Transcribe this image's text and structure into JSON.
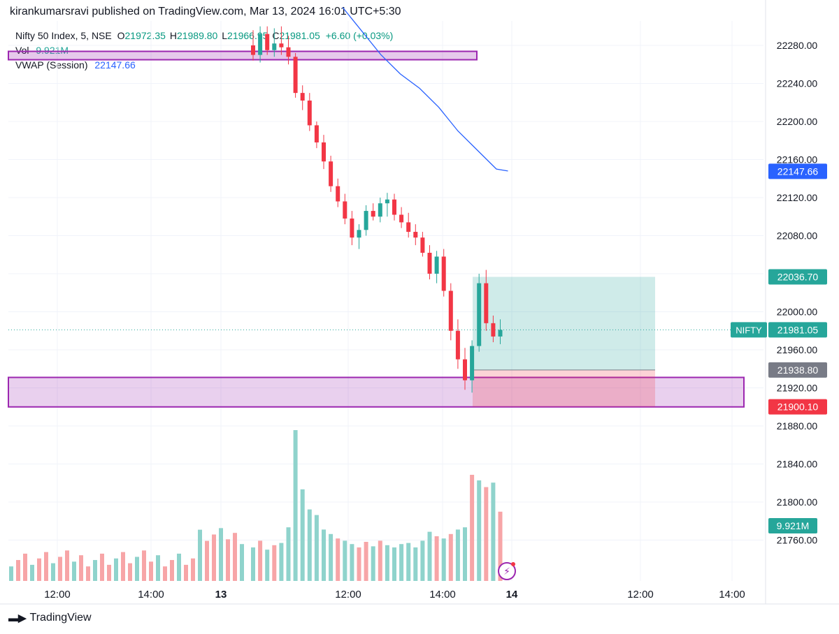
{
  "header": {
    "published": "kirankumarsravi published on TradingView.com, Mar 13, 2024 16:01 UTC+5:30"
  },
  "legend": {
    "symbol": "Nifty 50 Index, 5, NSE",
    "o_label": "O",
    "o_value": "21972.35",
    "h_label": "H",
    "h_value": "21989.80",
    "l_label": "L",
    "l_value": "21966.95",
    "c_label": "C",
    "c_value": "21981.05",
    "change": "+6.60 (+0.03%)",
    "vol_label": "Vol",
    "vol_value": "9.921M",
    "vwap_label": "VWAP (Session)",
    "vwap_value": "22147.66"
  },
  "footer": {
    "brand": "TradingView",
    "logo_icon": "tradingview-logo-icon"
  },
  "colors": {
    "up": "#26a69a",
    "down": "#f23645",
    "vwap": "#2962ff",
    "zone": "#9c27b0",
    "target": "#26a69a",
    "stop": "#f23645",
    "vol_up": "#8fd3cc",
    "vol_down": "#f7a5a7"
  },
  "chart_data": {
    "type": "candlestick",
    "ylim": [
      21740,
      22300
    ],
    "y_ticks": [
      "22280.00",
      "22240.00",
      "22200.00",
      "22160.00",
      "22120.00",
      "22080.00",
      "22040.00",
      "22000.00",
      "21960.00",
      "21920.00",
      "21880.00",
      "21840.00",
      "21800.00",
      "21760.00"
    ],
    "x_ticks": [
      "12:00",
      "14:00",
      "13",
      "12:00",
      "14:00",
      "14",
      "12:00",
      "14:00"
    ],
    "price_labels": {
      "vwap": "22147.66",
      "target": "22036.70",
      "last_symbol": "NIFTY",
      "last": "21981.05",
      "entry": "21938.80",
      "stop": "21900.10",
      "volume": "9.921M"
    },
    "last_price": 21981.05,
    "vwap": [
      [
        0,
        22320
      ],
      [
        5,
        22295
      ],
      [
        10,
        22270
      ],
      [
        15,
        22250
      ],
      [
        20,
        22235
      ],
      [
        25,
        22215
      ],
      [
        30,
        22190
      ],
      [
        35,
        22170
      ],
      [
        40,
        22150
      ],
      [
        43,
        22148
      ]
    ],
    "demand_zones": [
      {
        "from": 22273,
        "to": 22265
      },
      {
        "from": 21931,
        "to": 21900
      }
    ],
    "position": {
      "start": 40,
      "end": 56,
      "entry": 21938.8,
      "target": 22036.7,
      "stop": 21900.1
    },
    "series": [
      {
        "ohlc": [
          [
            22280,
            22296,
            22264,
            22270
          ],
          [
            22270,
            22300,
            22262,
            22292
          ],
          [
            22292,
            22300,
            22270,
            22275
          ],
          [
            22275,
            22298,
            22268,
            22282
          ],
          [
            22282,
            22300,
            22270,
            22278
          ],
          [
            22278,
            22290,
            22260,
            22268
          ],
          [
            22268,
            22272,
            22225,
            22230
          ],
          [
            22230,
            22238,
            22212,
            22222
          ],
          [
            22222,
            22230,
            22190,
            22196
          ],
          [
            22196,
            22200,
            22172,
            22178
          ],
          [
            22178,
            22186,
            22150,
            22158
          ],
          [
            22158,
            22164,
            22126,
            22132
          ],
          [
            22132,
            22140,
            22110,
            22116
          ],
          [
            22116,
            22124,
            22092,
            22098
          ],
          [
            22098,
            22106,
            22070,
            22078
          ],
          [
            22078,
            22092,
            22066,
            22086
          ],
          [
            22086,
            22112,
            22080,
            22106
          ],
          [
            22106,
            22114,
            22096,
            22100
          ],
          [
            22100,
            22120,
            22094,
            22114
          ],
          [
            22114,
            22125,
            22100,
            22118
          ],
          [
            22118,
            22124,
            22096,
            22102
          ],
          [
            22102,
            22110,
            22088,
            22094
          ],
          [
            22094,
            22104,
            22078,
            22084
          ],
          [
            22084,
            22092,
            22070,
            22078
          ],
          [
            22078,
            22084,
            22058,
            22062
          ],
          [
            22062,
            22070,
            22034,
            22040
          ],
          [
            22040,
            22064,
            22030,
            22058
          ],
          [
            22058,
            22066,
            22016,
            22022
          ],
          [
            22022,
            22030,
            21970,
            21980
          ],
          [
            21980,
            21992,
            21940,
            21950
          ],
          [
            21950,
            21962,
            21918,
            21928
          ],
          [
            21928,
            21970,
            21915,
            21964
          ],
          [
            21964,
            22040,
            21958,
            22030
          ],
          [
            22030,
            22044,
            21980,
            21988
          ],
          [
            21988,
            21996,
            21968,
            21974
          ],
          [
            21974,
            21992,
            21966,
            21981
          ]
        ],
        "volume": [
          [
            3.0,
            1
          ],
          [
            3.6,
            0
          ],
          [
            2.8,
            1
          ],
          [
            3.2,
            0
          ],
          [
            3.4,
            1
          ],
          [
            4.8,
            1
          ],
          [
            13.5,
            1
          ],
          [
            8.2,
            1
          ],
          [
            6.4,
            1
          ],
          [
            5.9,
            1
          ],
          [
            4.6,
            1
          ],
          [
            4.2,
            1
          ],
          [
            3.8,
            0
          ],
          [
            3.6,
            1
          ],
          [
            3.3,
            1
          ],
          [
            3.0,
            0
          ],
          [
            3.5,
            0
          ],
          [
            3.1,
            1
          ],
          [
            3.6,
            0
          ],
          [
            3.2,
            1
          ],
          [
            3.0,
            1
          ],
          [
            3.3,
            1
          ],
          [
            3.4,
            1
          ],
          [
            3.0,
            1
          ],
          [
            3.6,
            1
          ],
          [
            4.4,
            1
          ],
          [
            4.0,
            0
          ],
          [
            3.8,
            1
          ],
          [
            4.2,
            0
          ],
          [
            4.6,
            1
          ],
          [
            4.8,
            1
          ],
          [
            9.5,
            0
          ],
          [
            9.0,
            1
          ],
          [
            8.4,
            0
          ],
          [
            8.8,
            1
          ],
          [
            6.2,
            0
          ]
        ]
      }
    ]
  }
}
